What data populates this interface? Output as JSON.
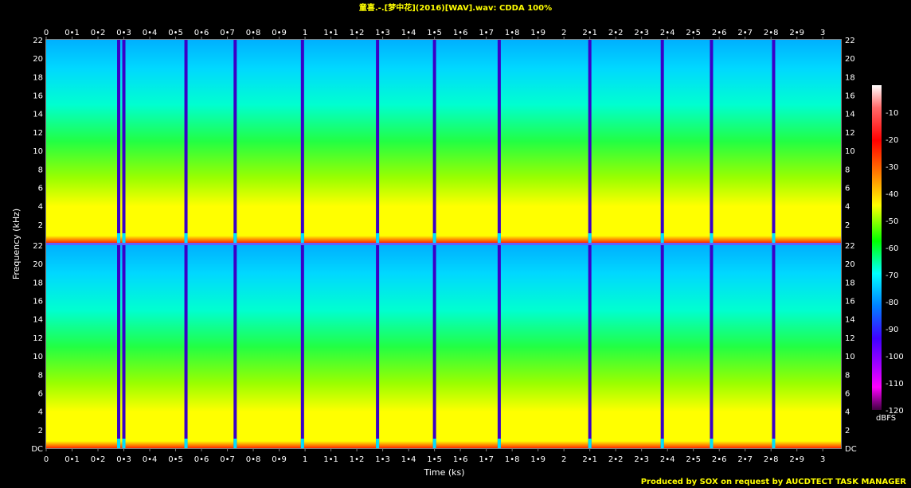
{
  "chart_data": {
    "type": "heatmap",
    "title": "童喜.-.[梦中花](2016)[WAV].wav: CDDA 100%",
    "xlabel": "Time (ks)",
    "ylabel": "Frequency (kHz)",
    "xlim": [
      0,
      3.07
    ],
    "ylim": [
      0,
      22
    ],
    "x_ticks": [
      "0",
      "0•1",
      "0•2",
      "0•3",
      "0•4",
      "0•5",
      "0•6",
      "0•7",
      "0•8",
      "0•9",
      "1",
      "1•1",
      "1•2",
      "1•3",
      "1•4",
      "1•5",
      "1•6",
      "1•7",
      "1•8",
      "1•9",
      "2",
      "2•1",
      "2•2",
      "2•3",
      "2•4",
      "2•5",
      "2•6",
      "2•7",
      "2•8",
      "2•9",
      "3"
    ],
    "y_ticks": [
      "DC",
      "2",
      "4",
      "6",
      "8",
      "10",
      "12",
      "14",
      "16",
      "18",
      "20",
      "22"
    ],
    "channels": 2,
    "colorbar": {
      "unit": "dBFS",
      "ticks": [
        "-10",
        "-20",
        "-30",
        "-40",
        "-50",
        "-60",
        "-70",
        "-80",
        "-90",
        "-100",
        "-110",
        "-120"
      ],
      "range": [
        -120,
        0
      ]
    },
    "track_gaps_ks": [
      0.28,
      0.3,
      0.54,
      0.73,
      0.99,
      1.28,
      1.5,
      1.75,
      2.1,
      2.38,
      2.57,
      2.81
    ]
  },
  "footer": "Produced by SOX on request by AUCDTECT TASK MANAGER"
}
